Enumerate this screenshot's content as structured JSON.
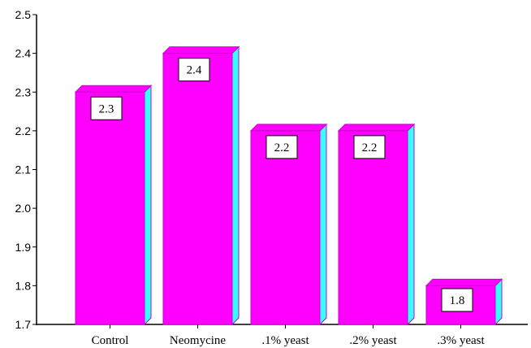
{
  "chart_data": {
    "type": "bar",
    "title": "",
    "xlabel": "",
    "ylabel": "",
    "categories": [
      "Control",
      "Neomycine",
      ".1% yeast",
      ".2% yeast",
      ".3% yeast"
    ],
    "values": [
      2.3,
      2.4,
      2.2,
      2.2,
      1.8
    ],
    "data_labels": [
      "2.3",
      "2.4",
      "2.2",
      "2.2",
      "1.8"
    ],
    "ylim": [
      1.7,
      2.5
    ],
    "yticks": [
      "1.7",
      "1.8",
      "1.9",
      "2.0",
      "2.1",
      "2.2",
      "2.3",
      "2.4",
      "2.5"
    ],
    "grid": false,
    "legend": "none",
    "colors": {
      "bar_front": "#ff00ff",
      "bar_side": "#33ffff",
      "bar_outline": "#cc00cc",
      "label_box": "#ffffff"
    }
  }
}
